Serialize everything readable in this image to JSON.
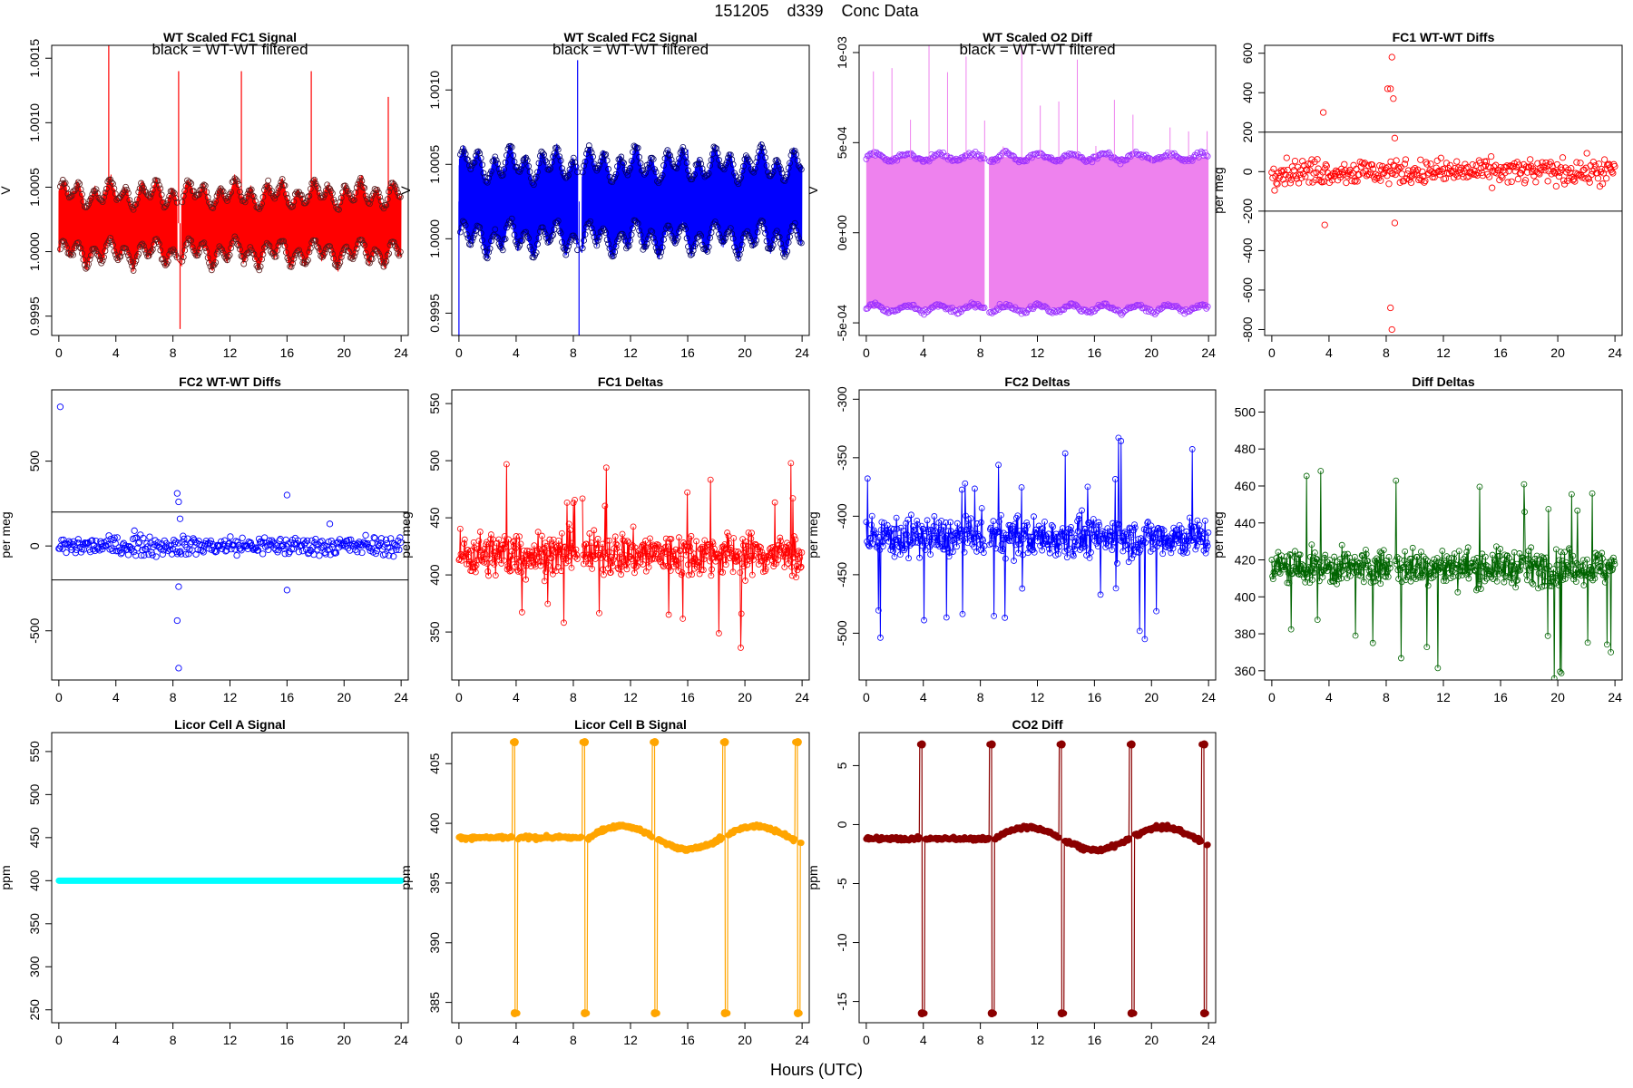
{
  "page": {
    "title": "151205    d339    Conc Data",
    "xlabel": "Hours (UTC)"
  },
  "chart_data": [
    {
      "id": "wt-fc1",
      "type": "line",
      "title": "WT Scaled FC1 Signal",
      "subtitle": "black = WT-WT filtered",
      "ylabel": "V",
      "color": "#ff0000",
      "xlim": [
        -0.5,
        24.5
      ],
      "ylim": [
        0.99935,
        1.0016
      ],
      "xticks": [
        0,
        4,
        8,
        12,
        16,
        20,
        24
      ],
      "yticks": [
        0.9995,
        1.0,
        1.0005,
        1.001,
        1.0015
      ],
      "ytick_labels": [
        "0.9995",
        "1.0000",
        "1.0005",
        "1.0010",
        "1.0015"
      ],
      "ytick_rotate": true,
      "pattern": "dense-band",
      "base": 1.00022,
      "amp": 0.00023,
      "noise": 8e-05,
      "gap": [
        8.3,
        8.6
      ],
      "spikes": [
        [
          3.5,
          1.0016
        ],
        [
          8.4,
          1.0014
        ],
        [
          8.5,
          0.9994
        ],
        [
          12.8,
          1.0014
        ],
        [
          17.7,
          1.0014
        ],
        [
          23.1,
          1.0012
        ]
      ],
      "overlay": "#5a1a1a"
    },
    {
      "id": "wt-fc2",
      "type": "line",
      "title": "WT Scaled FC2 Signal",
      "subtitle": "black = WT-WT filtered",
      "ylabel": "V",
      "color": "#0000ff",
      "xlim": [
        -0.5,
        24.5
      ],
      "ylim": [
        0.99935,
        1.0013
      ],
      "xticks": [
        0,
        4,
        8,
        12,
        16,
        20,
        24
      ],
      "yticks": [
        0.9995,
        1.0,
        1.0005,
        1.001
      ],
      "ytick_labels": [
        "0.9995",
        "1.0000",
        "1.0005",
        "1.0010"
      ],
      "ytick_rotate": true,
      "pattern": "dense-band",
      "base": 1.00025,
      "amp": 0.00025,
      "noise": 7e-05,
      "gap": [
        8.3,
        8.6
      ],
      "spikes": [
        [
          0,
          0.9993
        ],
        [
          8.3,
          1.0012
        ],
        [
          8.4,
          0.9993
        ],
        [
          16,
          1.0006
        ]
      ],
      "overlay": "#000066"
    },
    {
      "id": "wt-o2",
      "type": "line",
      "title": "WT Scaled O2 Diff",
      "subtitle": "black = WT-WT filtered",
      "ylabel": "V",
      "color": "#ee82ee",
      "xlim": [
        -0.5,
        24.5
      ],
      "ylim": [
        -0.00057,
        0.00104
      ],
      "xticks": [
        0,
        4,
        8,
        12,
        16,
        20,
        24
      ],
      "yticks": [
        -0.0005,
        0.0,
        0.0005,
        0.001
      ],
      "ytick_labels": [
        "-5e-04",
        "0e+00",
        "5e-04",
        "1e-03"
      ],
      "ytick_rotate": true,
      "pattern": "two-bands",
      "upper": 0.00042,
      "lower": -0.00042,
      "gap": [
        8.3,
        8.6
      ],
      "overlay": "#9b30ff"
    },
    {
      "id": "fc1-wtwt",
      "type": "scatter",
      "title": "FC1 WT-WT Diffs",
      "ylabel": "per meg",
      "color": "#ff0000",
      "xlim": [
        -0.5,
        24.5
      ],
      "ylim": [
        -830,
        640
      ],
      "xticks": [
        0,
        4,
        8,
        12,
        16,
        20,
        24
      ],
      "yticks": [
        -800,
        -600,
        -400,
        -200,
        0,
        200,
        400,
        600
      ],
      "ytick_labels": [
        "-800",
        "-600",
        "-400",
        "-200",
        "0",
        "200",
        "400",
        "600"
      ],
      "ytick_rotate": true,
      "hlines": [
        200,
        -200
      ],
      "pattern": "scatter-noise",
      "noise": 45,
      "outliers": [
        [
          3.6,
          300
        ],
        [
          3.7,
          -270
        ],
        [
          8.1,
          420
        ],
        [
          8.3,
          420
        ],
        [
          8.4,
          580
        ],
        [
          8.5,
          370
        ],
        [
          8.6,
          170
        ],
        [
          8.6,
          -260
        ],
        [
          8.3,
          -690
        ],
        [
          8.4,
          -800
        ]
      ]
    },
    {
      "id": "fc2-wtwt",
      "type": "scatter",
      "title": "FC2 WT-WT Diffs",
      "ylabel": "per meg",
      "color": "#0000ff",
      "xlim": [
        -0.5,
        24.5
      ],
      "ylim": [
        -790,
        920
      ],
      "xticks": [
        0,
        4,
        8,
        12,
        16,
        20,
        24
      ],
      "yticks": [
        -500,
        0,
        500
      ],
      "ytick_labels": [
        "-500",
        "0",
        "500"
      ],
      "ytick_rotate": true,
      "hlines": [
        200,
        -200
      ],
      "pattern": "scatter-noise",
      "noise": 40,
      "outliers": [
        [
          0.1,
          820
        ],
        [
          8.3,
          310
        ],
        [
          8.4,
          260
        ],
        [
          8.5,
          160
        ],
        [
          8.4,
          -240
        ],
        [
          8.3,
          -440
        ],
        [
          8.4,
          -720
        ],
        [
          16,
          300
        ],
        [
          16,
          -260
        ],
        [
          5.3,
          90
        ],
        [
          19,
          130
        ]
      ]
    },
    {
      "id": "fc1-deltas",
      "type": "line",
      "title": "FC1 Deltas",
      "ylabel": "per meg",
      "color": "#ff0000",
      "xlim": [
        -0.5,
        24.5
      ],
      "ylim": [
        308,
        562
      ],
      "xticks": [
        0,
        4,
        8,
        12,
        16,
        20,
        24
      ],
      "yticks": [
        350,
        400,
        450,
        500,
        550
      ],
      "ytick_labels": [
        "350",
        "400",
        "450",
        "500",
        "550"
      ],
      "ytick_rotate": true,
      "pattern": "noisy-line",
      "base": 418,
      "noise": 14,
      "spike_amp": 80,
      "gap": [
        8.3,
        8.6
      ]
    },
    {
      "id": "fc2-deltas",
      "type": "line",
      "title": "FC2 Deltas",
      "ylabel": "per meg",
      "color": "#0000ff",
      "xlim": [
        -0.5,
        24.5
      ],
      "ylim": [
        -540,
        -292
      ],
      "xticks": [
        0,
        4,
        8,
        12,
        16,
        20,
        24
      ],
      "yticks": [
        -500,
        -450,
        -400,
        -350,
        -300
      ],
      "ytick_labels": [
        "-500",
        "-450",
        "-400",
        "-350",
        "-300"
      ],
      "ytick_rotate": true,
      "pattern": "noisy-line",
      "base": -418,
      "noise": 12,
      "spike_amp": 80,
      "gap": [
        8.3,
        8.6
      ]
    },
    {
      "id": "diff-deltas",
      "type": "line",
      "title": "Diff Deltas",
      "ylabel": "per meg",
      "color": "#006400",
      "xlim": [
        -0.5,
        24.5
      ],
      "ylim": [
        355,
        512
      ],
      "xticks": [
        0,
        4,
        8,
        12,
        16,
        20,
        24
      ],
      "yticks": [
        360,
        380,
        400,
        420,
        440,
        460,
        480,
        500
      ],
      "ytick_labels": [
        "360",
        "380",
        "400",
        "420",
        "440",
        "460",
        "480",
        "500"
      ],
      "ytick_rotate": false,
      "pattern": "noisy-line",
      "base": 416,
      "noise": 7,
      "spike_amp": 55,
      "gap": [
        8.3,
        8.6
      ]
    },
    {
      "id": "licor-a",
      "type": "line",
      "title": "Licor Cell A Signal",
      "ylabel": "ppm",
      "color": "#00ffff",
      "xlim": [
        -0.5,
        24.5
      ],
      "ylim": [
        235,
        572
      ],
      "xticks": [
        0,
        4,
        8,
        12,
        16,
        20,
        24
      ],
      "yticks": [
        250,
        300,
        350,
        400,
        450,
        500,
        550
      ],
      "ytick_labels": [
        "250",
        "300",
        "350",
        "400",
        "450",
        "500",
        "550"
      ],
      "ytick_rotate": true,
      "pattern": "flat",
      "base": 400
    },
    {
      "id": "licor-b",
      "type": "line",
      "title": "Licor Cell B Signal",
      "ylabel": "ppm",
      "color": "#ffa500",
      "xlim": [
        -0.5,
        24.5
      ],
      "ylim": [
        383.3,
        407.6
      ],
      "xticks": [
        0,
        4,
        8,
        12,
        16,
        20,
        24
      ],
      "yticks": [
        385,
        390,
        395,
        400,
        405
      ],
      "ytick_labels": [
        "385",
        "390",
        "395",
        "400",
        "405"
      ],
      "ytick_rotate": true,
      "pattern": "cal-line",
      "base": 398.8,
      "hi": 406.8,
      "lo": 384.1,
      "cal_times": [
        3.9,
        8.8,
        13.7,
        18.6,
        23.7
      ]
    },
    {
      "id": "co2-diff",
      "type": "line",
      "title": "CO2 Diff",
      "ylabel": "ppm",
      "color": "#8b0000",
      "xlim": [
        -0.5,
        24.5
      ],
      "ylim": [
        -16.8,
        7.8
      ],
      "xticks": [
        0,
        4,
        8,
        12,
        16,
        20,
        24
      ],
      "yticks": [
        -15,
        -10,
        -5,
        0,
        5
      ],
      "ytick_labels": [
        "-15",
        "-10",
        "-5",
        "0",
        "5"
      ],
      "ytick_rotate": true,
      "pattern": "cal-line",
      "base": -1.2,
      "hi": 6.8,
      "lo": -16,
      "cal_times": [
        3.9,
        8.8,
        13.7,
        18.6,
        23.7
      ]
    }
  ]
}
